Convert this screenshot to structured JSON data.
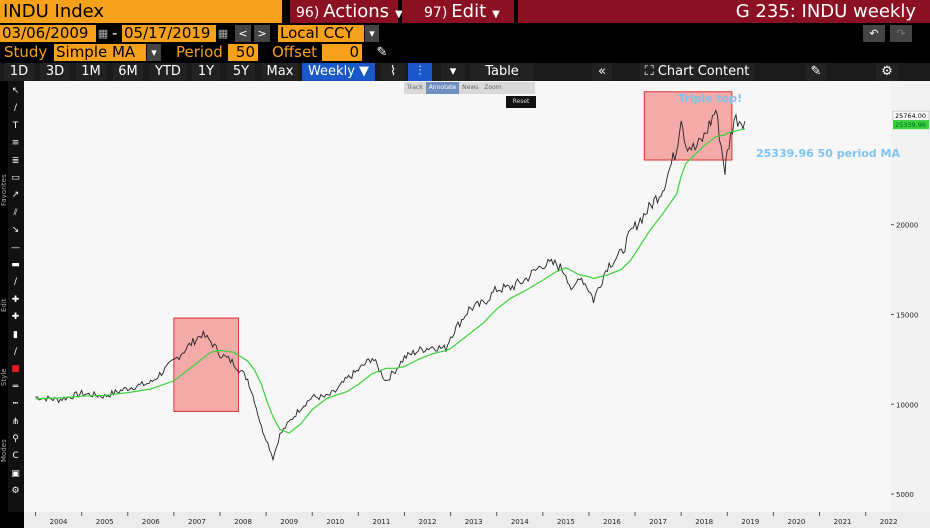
{
  "header": {
    "ticker": "INDU Index",
    "actions_num": "96)",
    "actions_label": "Actions",
    "edit_num": "97)",
    "edit_label": "Edit",
    "graph_title": "G 235: INDU weekly"
  },
  "controls": {
    "start_date": "03/06/2009",
    "date_sep": "-",
    "end_date": "05/17/2019",
    "currency": "Local CCY",
    "study_label": "Study",
    "study_value": "Simple MA",
    "period_label": "Period",
    "period_value": "50",
    "offset_label": "Offset",
    "offset_value": "0"
  },
  "toolbar": {
    "ranges": [
      "1D",
      "3D",
      "1M",
      "6M",
      "YTD",
      "1Y",
      "5Y",
      "Max"
    ],
    "frequency": "Weekly",
    "table_label": "Table",
    "chart_content_label": "Chart Content"
  },
  "floating_toolbar": {
    "track": "Track",
    "annotate": "Annotate",
    "news": "News",
    "zoom": "Zoom",
    "reset": "Reset"
  },
  "side_labels": {
    "favorites": "Favorites",
    "edit": "Edit",
    "style": "Style",
    "modes": "Modes"
  },
  "annotations": {
    "triple_top": "Triple top!",
    "ma_note": "25339.96 50 period MA"
  },
  "colors": {
    "accent": "#f7a11a",
    "menu": "#8b1021",
    "price_line": "#222222",
    "ma_line": "#3ad13a",
    "highlight": "#f46b6b",
    "annotation": "#7cc4f0"
  },
  "chart_data": {
    "type": "line",
    "x": [
      2004.0,
      2004.5,
      2005.0,
      2005.5,
      2006.0,
      2006.5,
      2007.0,
      2007.3,
      2007.6,
      2007.8,
      2008.0,
      2008.3,
      2008.6,
      2008.75,
      2008.9,
      2009.0,
      2009.15,
      2009.3,
      2009.5,
      2009.75,
      2010.0,
      2010.3,
      2010.5,
      2010.75,
      2011.0,
      2011.3,
      2011.6,
      2011.8,
      2012.0,
      2012.3,
      2012.6,
      2012.9,
      2013.0,
      2013.4,
      2013.7,
      2014.0,
      2014.3,
      2014.6,
      2015.0,
      2015.3,
      2015.5,
      2015.65,
      2015.8,
      2016.0,
      2016.1,
      2016.4,
      2016.7,
      2016.9,
      2017.0,
      2017.3,
      2017.6,
      2017.9,
      2018.0,
      2018.1,
      2018.3,
      2018.5,
      2018.75,
      2018.95,
      2019.0,
      2019.15,
      2019.38
    ],
    "series": [
      {
        "values": [
          10400,
          10250,
          10600,
          10450,
          10900,
          11200,
          12400,
          13200,
          13900,
          13500,
          12800,
          12300,
          11400,
          10200,
          8700,
          8100,
          7000,
          8300,
          9000,
          9800,
          10400,
          10400,
          10700,
          11400,
          11900,
          12600,
          11300,
          11900,
          12600,
          13000,
          13200,
          13100,
          13800,
          15300,
          15600,
          16400,
          16500,
          16900,
          17800,
          17800,
          17300,
          16200,
          17200,
          16400,
          15800,
          17700,
          18400,
          19500,
          19900,
          20900,
          22000,
          24200,
          26100,
          24500,
          24200,
          24900,
          26400,
          23000,
          24000,
          25900,
          25764
        ]
      },
      {
        "values": [
          10300,
          10350,
          10450,
          10500,
          10650,
          10850,
          11300,
          11900,
          12500,
          12900,
          13000,
          12900,
          12400,
          11900,
          11100,
          10300,
          9300,
          8600,
          8400,
          8900,
          9700,
          10300,
          10500,
          10700,
          11100,
          11700,
          12000,
          12000,
          12100,
          12500,
          12800,
          13000,
          13100,
          13900,
          14500,
          15300,
          15900,
          16300,
          16900,
          17400,
          17600,
          17400,
          17200,
          17100,
          17000,
          17200,
          17500,
          18000,
          18400,
          19600,
          20600,
          21700,
          22700,
          23400,
          23900,
          24400,
          24900,
          25000,
          25100,
          25200,
          25340
        ]
      }
    ],
    "ylim": [
      4000,
      28000
    ],
    "y_ticks": [
      5000,
      10000,
      15000,
      20000
    ],
    "x_ticks": [
      "2004",
      "2005",
      "2006",
      "2007",
      "2008",
      "2009",
      "2010",
      "2011",
      "2012",
      "2013",
      "2014",
      "2015",
      "2016",
      "2017",
      "2018",
      "2019",
      "2020",
      "2021",
      "2022"
    ],
    "last_price_label": "25764.00",
    "ma_label": "25339.96",
    "highlight_boxes": [
      {
        "x0": 2007.0,
        "x1": 2008.4,
        "y0": 9600,
        "y1": 14800
      },
      {
        "x0": 2017.2,
        "x1": 2019.1,
        "y0": 23600,
        "y1": 27400
      }
    ],
    "grid": false
  }
}
